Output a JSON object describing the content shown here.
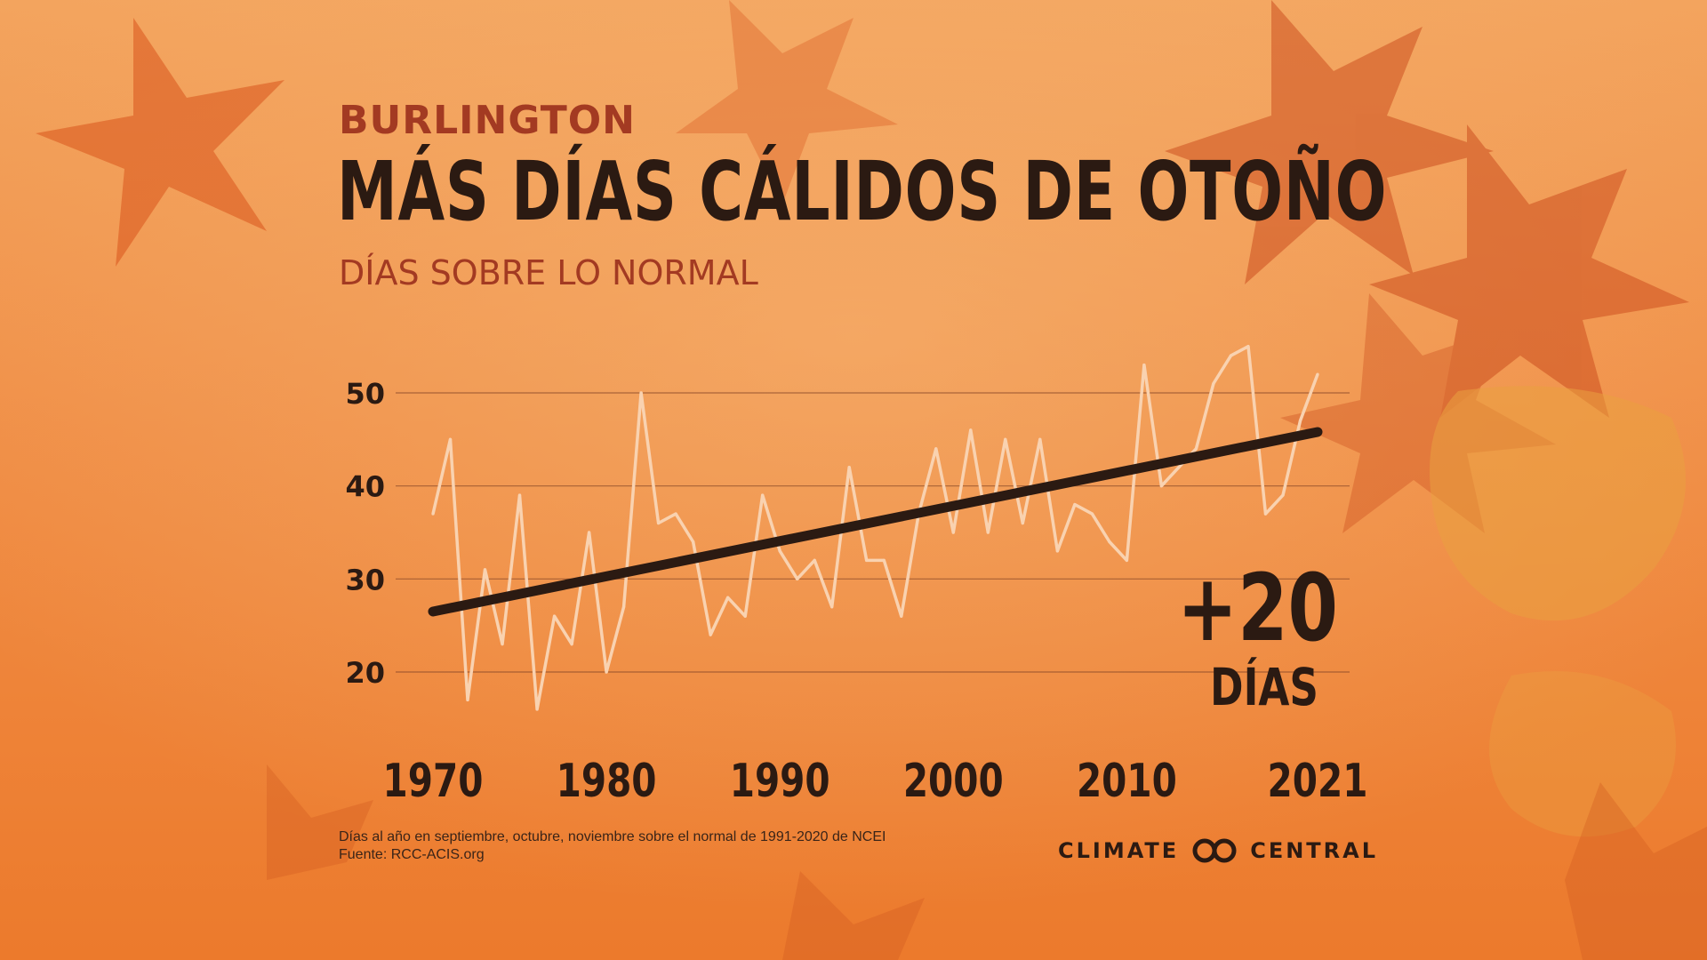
{
  "header": {
    "kicker": "BURLINGTON",
    "title": "MÁS DÍAS CÁLIDOS DE OTOÑO",
    "subtitle": "DÍAS SOBRE LO NORMAL"
  },
  "annotation": {
    "value": "+20",
    "unit": "DÍAS"
  },
  "footer": {
    "note_line1": "Días al año en septiembre, octubre, noviembre sobre el normal de 1991-2020 de NCEI",
    "note_line2": "Fuente: RCC-ACIS.org",
    "logo_left": "CLIMATE",
    "logo_right": "CENTRAL"
  },
  "colors": {
    "background": "#f08a3a",
    "series_line": "#f9d2b0",
    "trend_line": "#2b1a12",
    "grid": "#8a4a2a",
    "heading_accent": "#a33a22"
  },
  "chart_data": {
    "type": "line",
    "x_tick_labels": [
      "1970",
      "1980",
      "1990",
      "2000",
      "2010",
      "2021"
    ],
    "y_ticks": [
      20,
      30,
      40,
      50
    ],
    "xlim": [
      1970,
      2021
    ],
    "ylim": [
      20,
      50
    ],
    "grid": true,
    "series": [
      {
        "x": [
          1970,
          1971,
          1972,
          1973,
          1974,
          1975,
          1976,
          1977,
          1978,
          1979,
          1980,
          1981,
          1982,
          1983,
          1984,
          1985,
          1986,
          1987,
          1988,
          1989,
          1990,
          1991,
          1992,
          1993,
          1994,
          1995,
          1996,
          1997,
          1998,
          1999,
          2000,
          2001,
          2002,
          2003,
          2004,
          2005,
          2006,
          2007,
          2008,
          2009,
          2010,
          2011,
          2012,
          2013,
          2014,
          2015,
          2016,
          2017,
          2018,
          2019,
          2020,
          2021
        ],
        "y": [
          37,
          45,
          17,
          31,
          23,
          39,
          16,
          26,
          23,
          35,
          20,
          27,
          50,
          36,
          37,
          34,
          24,
          28,
          26,
          39,
          33,
          30,
          32,
          27,
          42,
          32,
          32,
          26,
          37,
          44,
          35,
          46,
          35,
          45,
          36,
          45,
          33,
          38,
          37,
          34,
          32,
          53,
          40,
          42,
          44,
          51,
          54,
          55,
          37,
          39,
          47,
          52
        ]
      },
      {
        "style": "trend",
        "x": [
          1970,
          2021
        ],
        "y": [
          26.5,
          45.8
        ]
      }
    ]
  }
}
